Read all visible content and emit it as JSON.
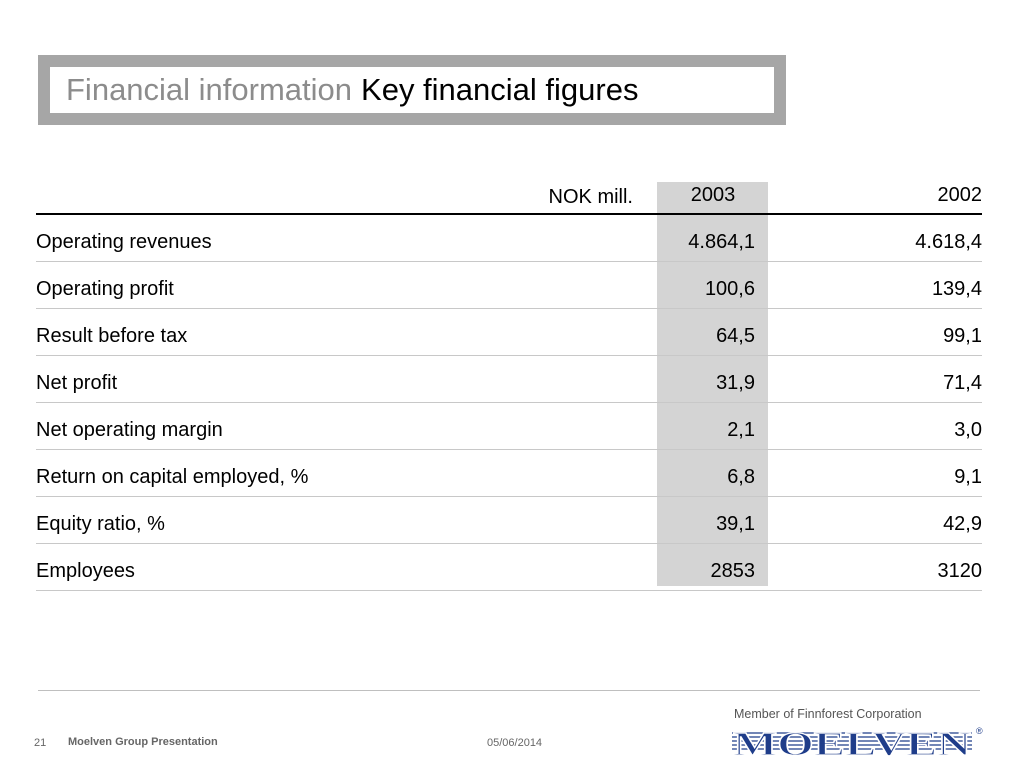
{
  "title": {
    "sub": "Financial information",
    "main": "Key financial figures"
  },
  "table": {
    "unit_label": "NOK mill.",
    "columns": [
      "2003",
      "2002"
    ],
    "rows": [
      {
        "label": "Operating revenues",
        "v2003": "4.864,1",
        "v2002": "4.618,4"
      },
      {
        "label": "Operating profit",
        "v2003": "100,6",
        "v2002": "139,4"
      },
      {
        "label": "Result before tax",
        "v2003": "64,5",
        "v2002": "99,1"
      },
      {
        "label": "Net profit",
        "v2003": "31,9",
        "v2002": "71,4"
      },
      {
        "label": "Net operating margin",
        "v2003": "2,1",
        "v2002": "3,0"
      },
      {
        "label": "Return on capital employed, %",
        "v2003": "6,8",
        "v2002": "9,1"
      },
      {
        "label": "Equity ratio, %",
        "v2003": "39,1",
        "v2002": "42,9"
      },
      {
        "label": "Employees",
        "v2003": "2853",
        "v2002": "3120"
      }
    ]
  },
  "footer": {
    "page_number": "21",
    "presentation_title": "Moelven Group Presentation",
    "date": "05/06/2014"
  },
  "logo": {
    "tagline": "Member of Finnforest Corporation",
    "wordmark": "MOELVEN",
    "registered": "®",
    "color": "#1f3d8a"
  }
}
